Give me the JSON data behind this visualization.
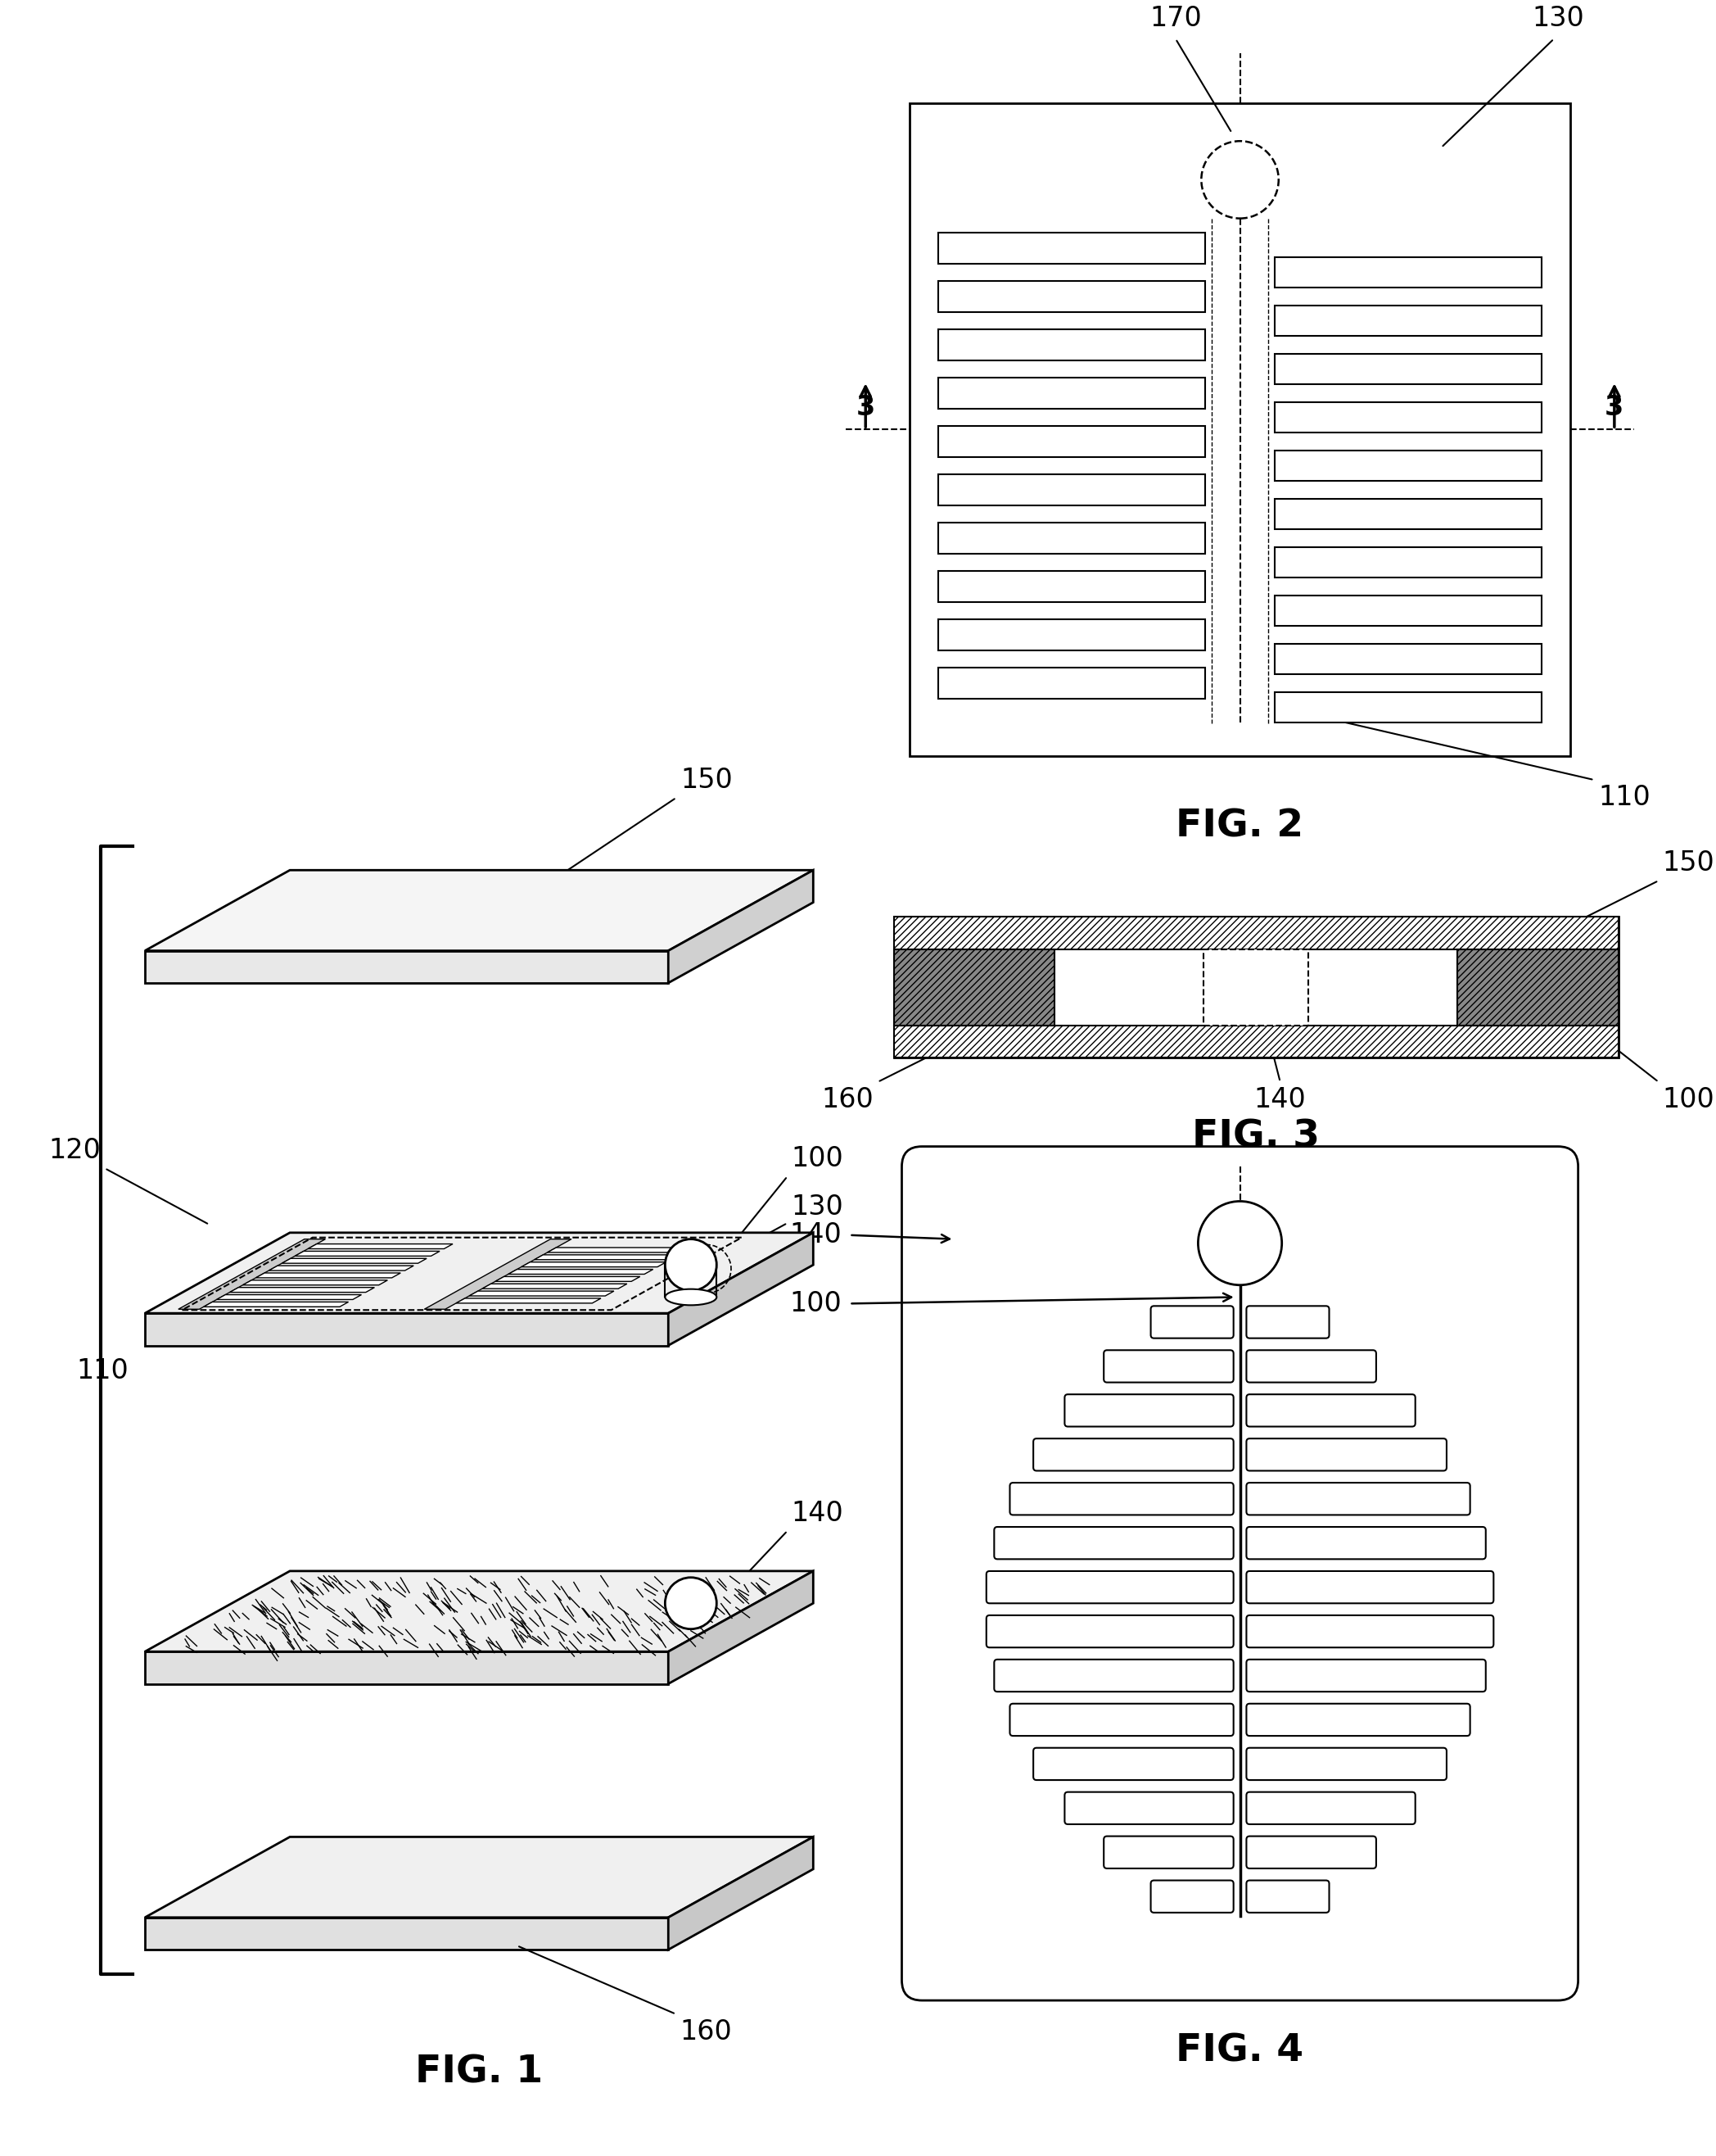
{
  "fig_width": 20.96,
  "fig_height": 26.32,
  "background": "#ffffff",
  "fig1_label": "FIG. 1",
  "fig2_label": "FIG. 2",
  "fig3_label": "FIG. 3",
  "fig4_label": "FIG. 4",
  "label_150": "150",
  "label_120": "120",
  "label_110": "110",
  "label_100": "100",
  "label_130": "130",
  "label_140": "140",
  "label_160": "160",
  "label_170": "170"
}
